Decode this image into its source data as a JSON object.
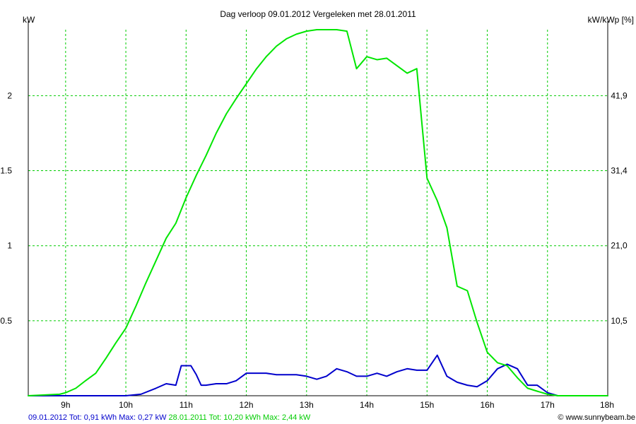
{
  "chart_data": {
    "type": "line",
    "title": "Dag  verloop 09.01.2012   Vergeleken met 28.01.2011",
    "ylabel_left": "kW",
    "ylabel_right": "kW/kWp [%]",
    "x_ticks": [
      "9h",
      "10h",
      "11h",
      "12h",
      "13h",
      "14h",
      "15h",
      "16h",
      "17h",
      "18h"
    ],
    "y_ticks_left": [
      "0.5",
      "1",
      "1.5",
      "2"
    ],
    "y_ticks_left_values": [
      0.5,
      1.0,
      1.5,
      2.0
    ],
    "y_ticks_right": [
      "10,5",
      "21,0",
      "31,4",
      "41,9"
    ],
    "y_ticks_right_values": [
      0.5,
      1.0,
      1.5,
      2.0
    ],
    "xlim": [
      8.38,
      18.0
    ],
    "ylim": [
      0,
      2.44
    ],
    "grid": true,
    "legend_placement": "bottom-left",
    "series": [
      {
        "name": "09.01.2012",
        "color": "#0000cc",
        "x": [
          8.38,
          9.0,
          9.5,
          9.75,
          10.0,
          10.25,
          10.5,
          10.67,
          10.83,
          10.92,
          11.0,
          11.08,
          11.17,
          11.25,
          11.33,
          11.5,
          11.67,
          11.83,
          12.0,
          12.17,
          12.33,
          12.5,
          12.67,
          12.83,
          13.0,
          13.17,
          13.33,
          13.5,
          13.67,
          13.83,
          14.0,
          14.17,
          14.33,
          14.5,
          14.67,
          14.83,
          15.0,
          15.17,
          15.33,
          15.5,
          15.67,
          15.83,
          16.0,
          16.17,
          16.33,
          16.5,
          16.67,
          16.83,
          17.0,
          17.17,
          17.5,
          18.0
        ],
        "y": [
          0.0,
          0.0,
          0.0,
          0.0,
          0.0,
          0.01,
          0.05,
          0.08,
          0.07,
          0.2,
          0.2,
          0.2,
          0.14,
          0.07,
          0.07,
          0.08,
          0.08,
          0.1,
          0.15,
          0.15,
          0.15,
          0.14,
          0.14,
          0.14,
          0.13,
          0.11,
          0.13,
          0.18,
          0.16,
          0.13,
          0.13,
          0.15,
          0.13,
          0.16,
          0.18,
          0.17,
          0.17,
          0.27,
          0.13,
          0.09,
          0.07,
          0.06,
          0.1,
          0.18,
          0.21,
          0.18,
          0.07,
          0.07,
          0.02,
          0.0,
          0.0,
          0.0
        ]
      },
      {
        "name": "28.01.2011",
        "color": "#00e600",
        "x": [
          8.38,
          8.9,
          9.0,
          9.17,
          9.33,
          9.5,
          9.67,
          9.83,
          10.0,
          10.17,
          10.33,
          10.5,
          10.67,
          10.83,
          11.0,
          11.17,
          11.33,
          11.5,
          11.67,
          11.83,
          12.0,
          12.17,
          12.33,
          12.5,
          12.67,
          12.83,
          13.0,
          13.17,
          13.33,
          13.5,
          13.67,
          13.83,
          14.0,
          14.17,
          14.33,
          14.5,
          14.67,
          14.83,
          15.0,
          15.17,
          15.33,
          15.5,
          15.67,
          15.83,
          16.0,
          16.17,
          16.33,
          16.5,
          16.67,
          16.83,
          17.0,
          17.17,
          17.5,
          18.0
        ],
        "y": [
          0.0,
          0.01,
          0.02,
          0.05,
          0.1,
          0.15,
          0.25,
          0.35,
          0.45,
          0.6,
          0.75,
          0.9,
          1.05,
          1.15,
          1.32,
          1.47,
          1.6,
          1.75,
          1.88,
          1.98,
          2.08,
          2.18,
          2.26,
          2.33,
          2.38,
          2.41,
          2.43,
          2.44,
          2.44,
          2.44,
          2.43,
          2.18,
          2.26,
          2.24,
          2.25,
          2.2,
          2.15,
          2.18,
          1.45,
          1.3,
          1.12,
          0.73,
          0.7,
          0.49,
          0.29,
          0.22,
          0.2,
          0.12,
          0.05,
          0.03,
          0.01,
          0.0,
          0.0,
          0.0
        ]
      }
    ],
    "footer_items": [
      {
        "text": "09.01.2012 Tot: 0,91 kWh Max: 0,27 kW",
        "color": "#0000cc"
      },
      {
        "text": " 28.01.2011 Tot: 10,20 kWh Max: 2,44 kW",
        "color": "#00cc00"
      }
    ],
    "watermark": "© www.sunnybeam.be"
  }
}
